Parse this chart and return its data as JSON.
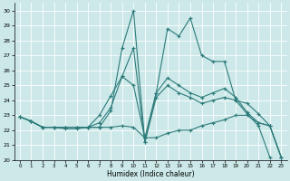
{
  "xlabel": "Humidex (Indice chaleur)",
  "xlim": [
    -0.5,
    23.5
  ],
  "ylim": [
    20,
    30.5
  ],
  "yticks": [
    20,
    21,
    22,
    23,
    24,
    25,
    26,
    27,
    28,
    29,
    30
  ],
  "xticks": [
    0,
    1,
    2,
    3,
    4,
    5,
    6,
    7,
    8,
    9,
    10,
    11,
    12,
    13,
    14,
    15,
    16,
    17,
    18,
    19,
    20,
    21,
    22,
    23
  ],
  "bg_color": "#cce8e8",
  "grid_color": "#b0d8d8",
  "line_color": "#2d7b7b",
  "series": [
    {
      "x": [
        0,
        1,
        2,
        3,
        4,
        5,
        6,
        7,
        8,
        9,
        10,
        11,
        12,
        13,
        14,
        15,
        16,
        17,
        18,
        19,
        20,
        21,
        22
      ],
      "y": [
        22.9,
        22.6,
        22.2,
        22.2,
        22.1,
        22.1,
        22.2,
        22.2,
        23.3,
        27.5,
        30.0,
        21.2,
        24.5,
        28.8,
        28.3,
        29.5,
        27.0,
        26.6,
        26.6,
        24.0,
        23.1,
        22.3,
        20.2
      ]
    },
    {
      "x": [
        0,
        1,
        2,
        3,
        4,
        5,
        6,
        7,
        8,
        9,
        10,
        11,
        12,
        13,
        14,
        15,
        16,
        17,
        18,
        19,
        20,
        21,
        22,
        23
      ],
      "y": [
        22.9,
        22.6,
        22.2,
        22.2,
        22.2,
        22.2,
        22.2,
        22.5,
        23.5,
        25.6,
        27.5,
        21.2,
        24.2,
        25.0,
        24.5,
        24.2,
        23.8,
        24.0,
        24.2,
        24.0,
        23.8,
        23.1,
        22.3,
        20.2
      ]
    },
    {
      "x": [
        0,
        1,
        2,
        3,
        4,
        5,
        6,
        7,
        8,
        9,
        10,
        11,
        12,
        13,
        14,
        15,
        16,
        17,
        18,
        19,
        20,
        21,
        22,
        23
      ],
      "y": [
        22.9,
        22.6,
        22.2,
        22.2,
        22.2,
        22.2,
        22.2,
        23.0,
        24.3,
        25.6,
        25.0,
        21.5,
        24.5,
        25.5,
        25.0,
        24.5,
        24.2,
        24.5,
        24.8,
        24.2,
        23.2,
        22.5,
        22.3,
        20.2
      ]
    },
    {
      "x": [
        0,
        1,
        2,
        3,
        4,
        5,
        6,
        7,
        8,
        9,
        10,
        11,
        12,
        13,
        14,
        15,
        16,
        17,
        18,
        19,
        20,
        21,
        22,
        23
      ],
      "y": [
        22.9,
        22.6,
        22.2,
        22.2,
        22.2,
        22.2,
        22.2,
        22.2,
        22.2,
        22.3,
        22.2,
        21.5,
        21.5,
        21.8,
        22.0,
        22.0,
        22.3,
        22.5,
        22.7,
        23.0,
        23.0,
        22.5,
        22.3,
        20.2
      ]
    }
  ]
}
